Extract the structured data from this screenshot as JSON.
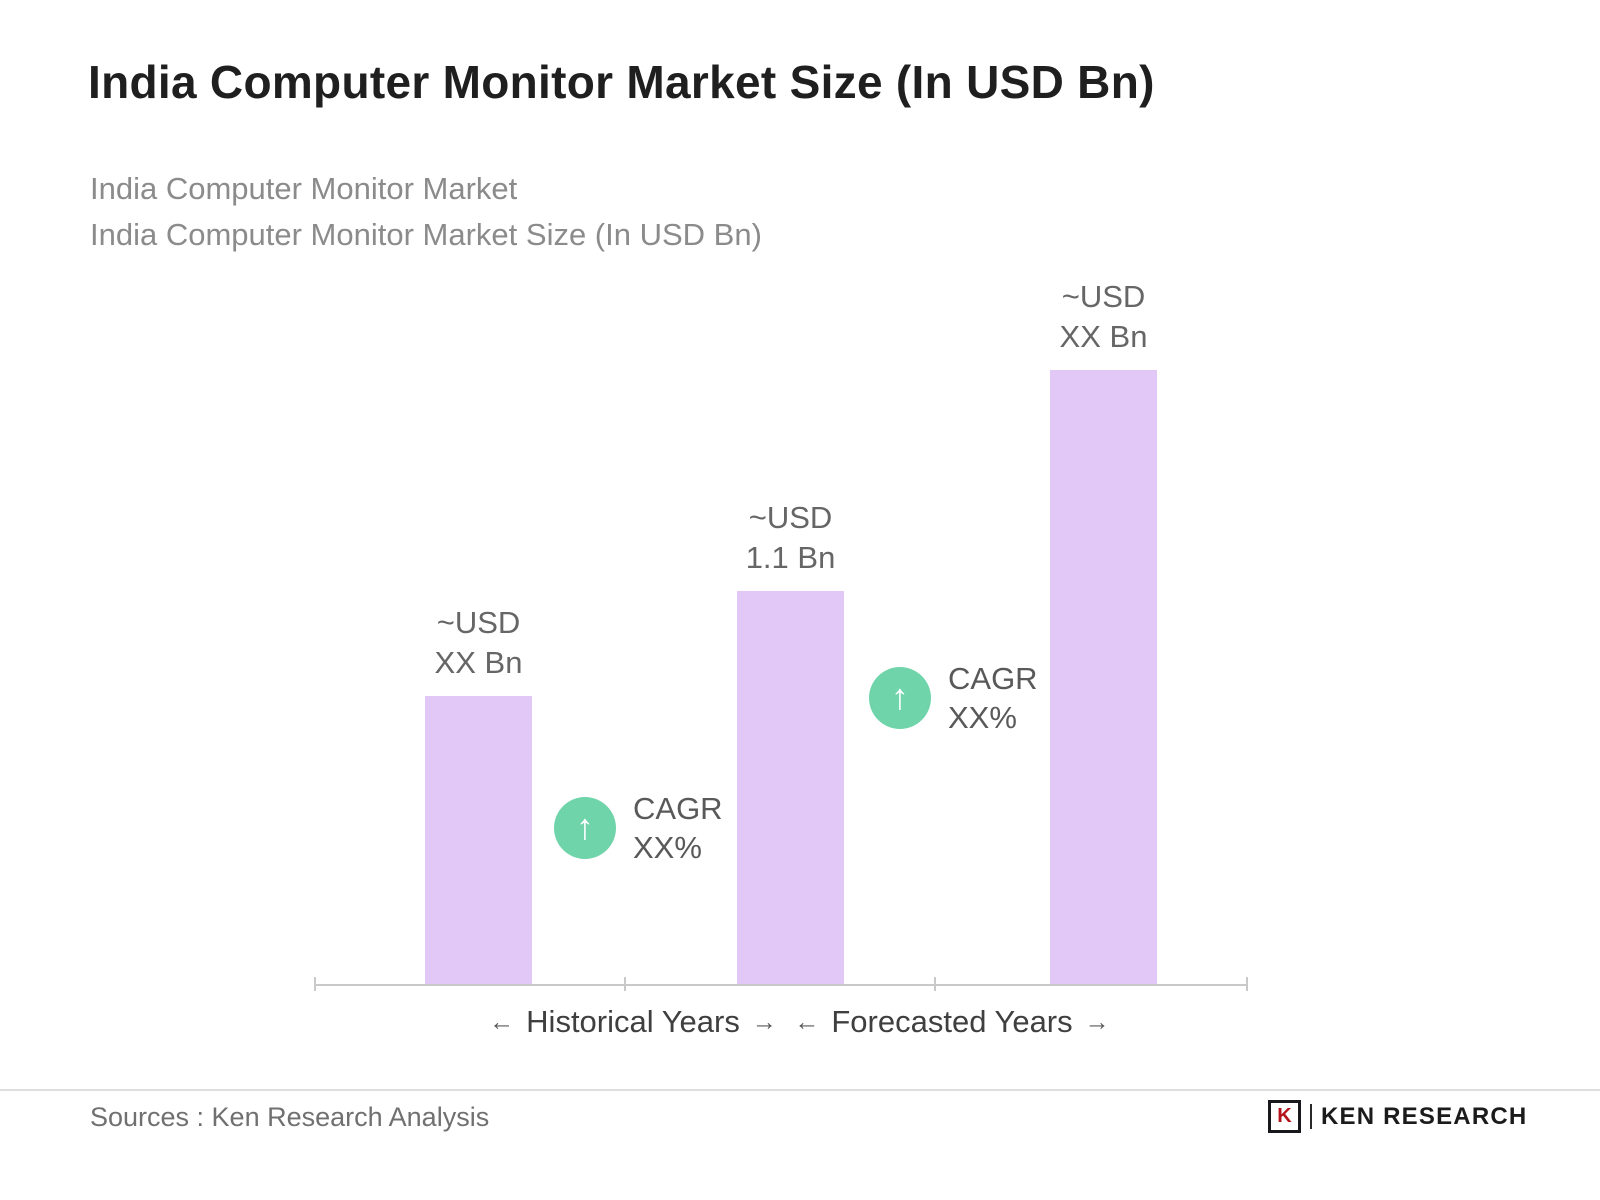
{
  "header": {
    "title": "India Computer Monitor Market Size (In USD Bn)",
    "subtitle_lines": [
      "India Computer Monitor Market",
      "India Computer Monitor Market Size (In USD Bn)"
    ]
  },
  "icons": {
    "up_arrow": "↑",
    "left_arrow": "←",
    "right_arrow": "→"
  },
  "chart_data": {
    "type": "bar",
    "title": "India Computer Monitor Market Size (In USD Bn)",
    "unit": "USD Bn",
    "grid": false,
    "legend": "none",
    "bar_color": "#e2c8f6",
    "annotation_circle_color": "#6fd4aa",
    "bars": [
      {
        "value_label_line1": "~USD",
        "value_label_line2": "XX Bn",
        "value_usd_bn": null,
        "height_relative_to_max": 0.47
      },
      {
        "value_label_line1": "~USD",
        "value_label_line2": "1.1 Bn",
        "value_usd_bn": 1.1,
        "height_relative_to_max": 0.64
      },
      {
        "value_label_line1": "~USD",
        "value_label_line2": "XX Bn",
        "value_usd_bn": null,
        "height_relative_to_max": 1.0
      }
    ],
    "cagr_annotations": [
      {
        "line1": "CAGR",
        "line2": "XX%"
      },
      {
        "line1": "CAGR",
        "line2": "XX%"
      }
    ],
    "x_group_labels": [
      {
        "text": "Historical Years"
      },
      {
        "text": "Forecasted Years"
      }
    ]
  },
  "footer": {
    "source_text": "Sources : Ken Research Analysis",
    "logo": {
      "mark": "K",
      "text": "KEN RESEARCH"
    }
  }
}
